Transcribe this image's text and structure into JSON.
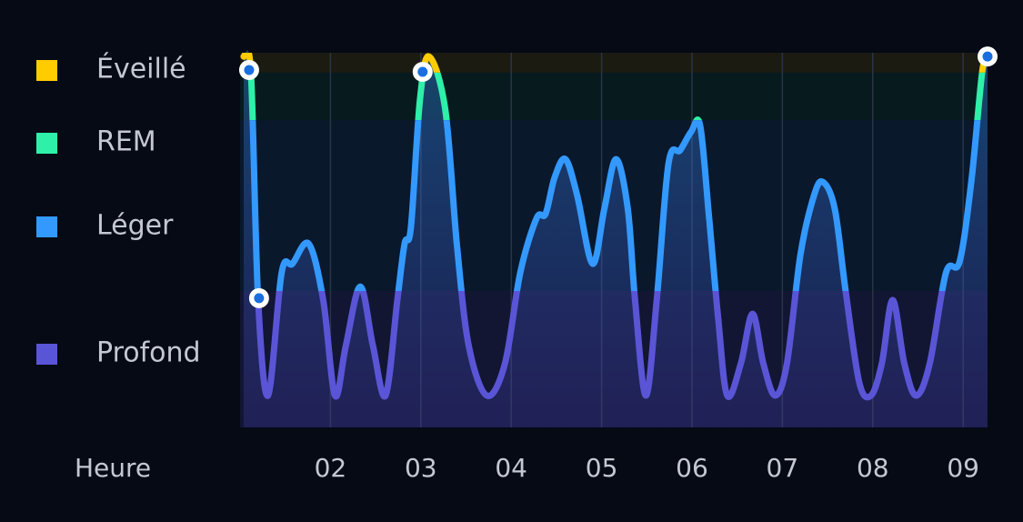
{
  "chart_data": {
    "type": "line",
    "x_label": "Heure",
    "xlim": [
      1,
      9.27
    ],
    "xticks": [
      {
        "value": 2,
        "label": "02"
      },
      {
        "value": 3,
        "label": "03"
      },
      {
        "value": 4,
        "label": "04"
      },
      {
        "value": 5,
        "label": "05"
      },
      {
        "value": 6,
        "label": "06"
      },
      {
        "value": 7,
        "label": "07"
      },
      {
        "value": 8,
        "label": "08"
      },
      {
        "value": 9,
        "label": "09"
      }
    ],
    "ylim": [
      0,
      100
    ],
    "stages": [
      {
        "name": "Éveillé",
        "color": "#ffcc00",
        "range": [
          94.7,
          100
        ]
      },
      {
        "name": "REM",
        "color": "#2ef0a8",
        "range": [
          82,
          94.7
        ]
      },
      {
        "name": "Léger",
        "color": "#3399ff",
        "range": [
          36.4,
          82
        ]
      },
      {
        "name": "Profond",
        "color": "#5a55d6",
        "range": [
          0,
          36.4
        ]
      }
    ],
    "x": [
      1.04,
      1.12,
      1.2,
      1.31,
      1.46,
      1.58,
      1.76,
      1.92,
      2.05,
      2.17,
      2.33,
      2.47,
      2.61,
      2.74,
      2.82,
      2.89,
      2.99,
      3.09,
      3.27,
      3.4,
      3.53,
      3.73,
      3.93,
      4.1,
      4.28,
      4.38,
      4.48,
      4.6,
      4.73,
      4.9,
      5.03,
      5.16,
      5.29,
      5.37,
      5.49,
      5.61,
      5.74,
      5.87,
      5.99,
      6.09,
      6.19,
      6.29,
      6.39,
      6.54,
      6.67,
      6.79,
      6.92,
      7.05,
      7.2,
      7.35,
      7.45,
      7.58,
      7.7,
      7.85,
      7.98,
      8.1,
      8.22,
      8.35,
      8.48,
      8.63,
      8.81,
      8.96,
      9.09,
      9.21,
      9.27
    ],
    "values": [
      99.0,
      94.7,
      34.0,
      8.5,
      41.3,
      43.7,
      49.0,
      34.0,
      8.5,
      21.8,
      37.6,
      21.8,
      8.5,
      34.0,
      49.0,
      53.4,
      87.4,
      99.0,
      84.9,
      48.5,
      21.8,
      8.5,
      17.0,
      41.3,
      55.8,
      57.0,
      66.7,
      71.6,
      61.9,
      43.7,
      58.3,
      71.6,
      58.3,
      34.0,
      8.5,
      34.0,
      70.4,
      74.0,
      78.9,
      80.6,
      55.8,
      29.1,
      8.5,
      17.0,
      30.3,
      17.0,
      8.5,
      17.0,
      46.1,
      61.9,
      65.5,
      58.3,
      36.4,
      12.1,
      8.5,
      17.0,
      34.0,
      17.0,
      8.5,
      17.0,
      41.3,
      44.2,
      65.5,
      94.7,
      99.0
    ],
    "highlights": [
      {
        "x": 1.1,
        "y": 95.4
      },
      {
        "x": 1.21,
        "y": 34.5
      },
      {
        "x": 3.02,
        "y": 94.9
      },
      {
        "x": 9.27,
        "y": 99.0
      }
    ],
    "grid": true
  }
}
